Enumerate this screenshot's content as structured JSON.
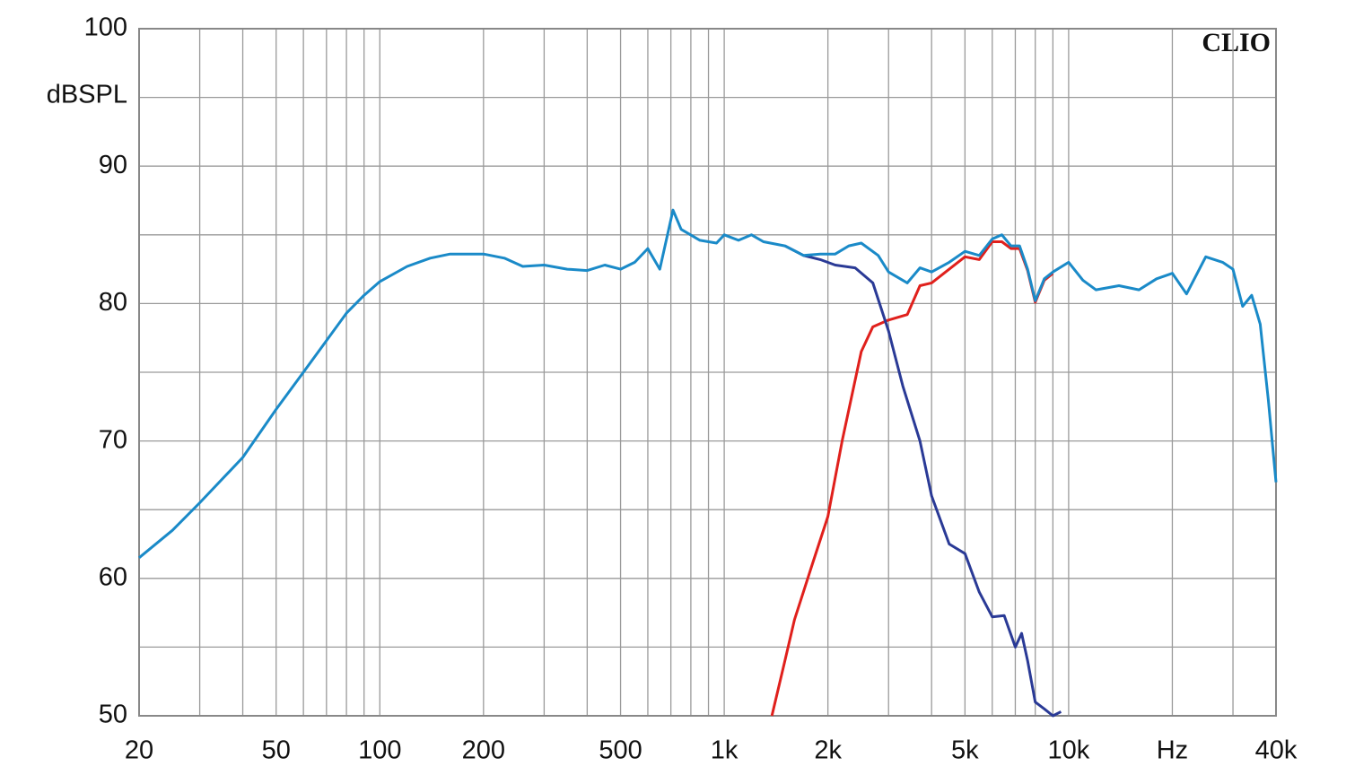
{
  "chart_data": {
    "type": "line",
    "y_label": "dBSPL",
    "annotation": "CLIO",
    "log_x": true,
    "grid": true,
    "xlim": [
      20,
      40000
    ],
    "ylim": [
      50,
      100
    ],
    "xticks": [
      20,
      50,
      100,
      200,
      500,
      {
        "value": 1000,
        "label": "1k"
      },
      {
        "value": 2000,
        "label": "2k"
      },
      {
        "value": 5000,
        "label": "5k"
      },
      {
        "value": 10000,
        "label": "10k"
      },
      {
        "value": 20000,
        "label": "Hz"
      },
      {
        "value": 40000,
        "label": "40k"
      }
    ],
    "x_minor_ticks": [
      30,
      40,
      60,
      70,
      80,
      90,
      300,
      400,
      600,
      700,
      800,
      900,
      3000,
      4000,
      6000,
      7000,
      8000,
      9000,
      30000
    ],
    "yticks": [
      50,
      60,
      70,
      80,
      90,
      100
    ],
    "y_minor_ticks": [
      55,
      65,
      75,
      85,
      95
    ],
    "series": [
      {
        "color": "#e0201c",
        "x": [
          1375,
          1500,
          1600,
          1800,
          2000,
          2200,
          2500,
          2700,
          3000,
          3400,
          3700,
          4000,
          4500,
          5000,
          5500,
          6000,
          6400,
          6800,
          7200,
          7600,
          8000,
          8500,
          9000
        ],
        "values": [
          50,
          54,
          57,
          61,
          64.5,
          70,
          76.5,
          78.3,
          78.8,
          79.2,
          81.3,
          81.5,
          82.5,
          83.4,
          83.2,
          84.5,
          84.5,
          84,
          84,
          82.4,
          80.1,
          81.7,
          82.2
        ]
      },
      {
        "color": "#2a3a96",
        "x": [
          1500,
          1700,
          1900,
          2100,
          2400,
          2700,
          3000,
          3300,
          3700,
          4000,
          4500,
          5000,
          5500,
          6000,
          6500,
          7000,
          7300,
          7600,
          8000,
          8500,
          9000,
          9500
        ],
        "values": [
          84.2,
          83.5,
          83.2,
          82.8,
          82.6,
          81.5,
          78,
          74,
          70,
          66,
          62.5,
          61.8,
          59,
          57.2,
          57.3,
          55,
          56,
          54,
          51,
          50.5,
          50,
          50.3
        ]
      },
      {
        "color": "#1a8ac8",
        "x": [
          20,
          25,
          30,
          40,
          50,
          60,
          70,
          80,
          90,
          100,
          120,
          140,
          160,
          200,
          230,
          260,
          300,
          350,
          400,
          450,
          500,
          550,
          600,
          650,
          710,
          750,
          850,
          950,
          1000,
          1100,
          1200,
          1300,
          1500,
          1700,
          1900,
          2100,
          2300,
          2500,
          2800,
          3000,
          3400,
          3700,
          4000,
          4500,
          5000,
          5500,
          6000,
          6400,
          6800,
          7200,
          7600,
          8000,
          8500,
          9000,
          10000,
          11000,
          12000,
          14000,
          16000,
          18000,
          20000,
          22000,
          25000,
          28000,
          30000,
          32000,
          34000,
          36000,
          38000,
          40000
        ],
        "values": [
          61.5,
          63.5,
          65.5,
          68.8,
          72.3,
          75,
          77.3,
          79.3,
          80.6,
          81.6,
          82.7,
          83.3,
          83.6,
          83.6,
          83.3,
          82.7,
          82.8,
          82.5,
          82.4,
          82.8,
          82.5,
          83,
          84,
          82.5,
          86.8,
          85.4,
          84.6,
          84.4,
          85,
          84.6,
          85,
          84.5,
          84.2,
          83.5,
          83.6,
          83.6,
          84.2,
          84.4,
          83.5,
          82.3,
          81.5,
          82.6,
          82.3,
          83,
          83.8,
          83.5,
          84.7,
          85,
          84.2,
          84.2,
          82.5,
          80.2,
          81.8,
          82.3,
          83,
          81.7,
          81,
          81.3,
          81,
          81.8,
          82.2,
          80.7,
          83.4,
          83,
          82.5,
          79.8,
          80.6,
          78.5,
          73,
          67
        ]
      }
    ]
  }
}
